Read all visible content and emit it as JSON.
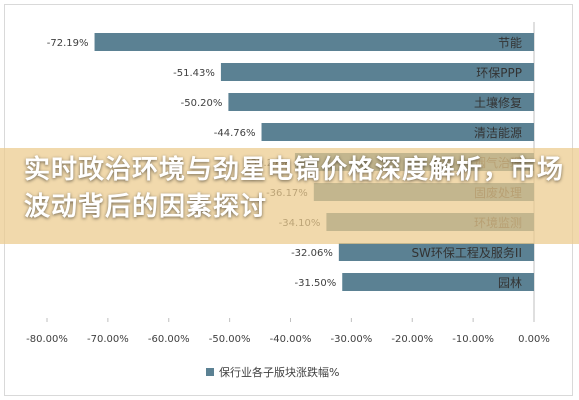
{
  "banner": {
    "title": "实时政治环境与劲星电镐价格深度解析，市场波动背后的因素探讨"
  },
  "legend": {
    "label": "保行业各子版块涨跌幅%"
  },
  "colors": {
    "bar": "#5b8193",
    "axis": "#bfbfbf",
    "banner": "#eccb8c"
  },
  "chart_data": {
    "type": "bar",
    "orientation": "horizontal",
    "title": "",
    "xlabel": "",
    "ylabel": "",
    "categories": [
      "节能",
      "环保PPP",
      "土壤修复",
      "清洁能源",
      "烟气治理",
      "固废处理",
      "环境监测",
      "SW环保工程及服务II",
      "园林"
    ],
    "series": [
      {
        "name": "保行业各子版块涨跌幅%",
        "values": [
          -72.19,
          -51.43,
          -50.2,
          -44.76,
          -39.27,
          -36.17,
          -34.1,
          -32.06,
          -31.5
        ],
        "data_labels": [
          "-72.19%",
          "-51.43%",
          "-50.20%",
          "-44.76%",
          "-39.27%",
          "-36.17%",
          "-34.10%",
          "-32.06%",
          "-31.50%"
        ]
      }
    ],
    "xlim": [
      -80,
      0
    ],
    "xticks": [
      -80,
      -70,
      -60,
      -50,
      -40,
      -30,
      -20,
      -10,
      0
    ],
    "xtick_labels": [
      "-80.00%",
      "-70.00%",
      "-60.00%",
      "-50.00%",
      "-40.00%",
      "-30.00%",
      "-20.00%",
      "-10.00%",
      "0.00%"
    ],
    "grid": false,
    "legend_position": "bottom"
  }
}
